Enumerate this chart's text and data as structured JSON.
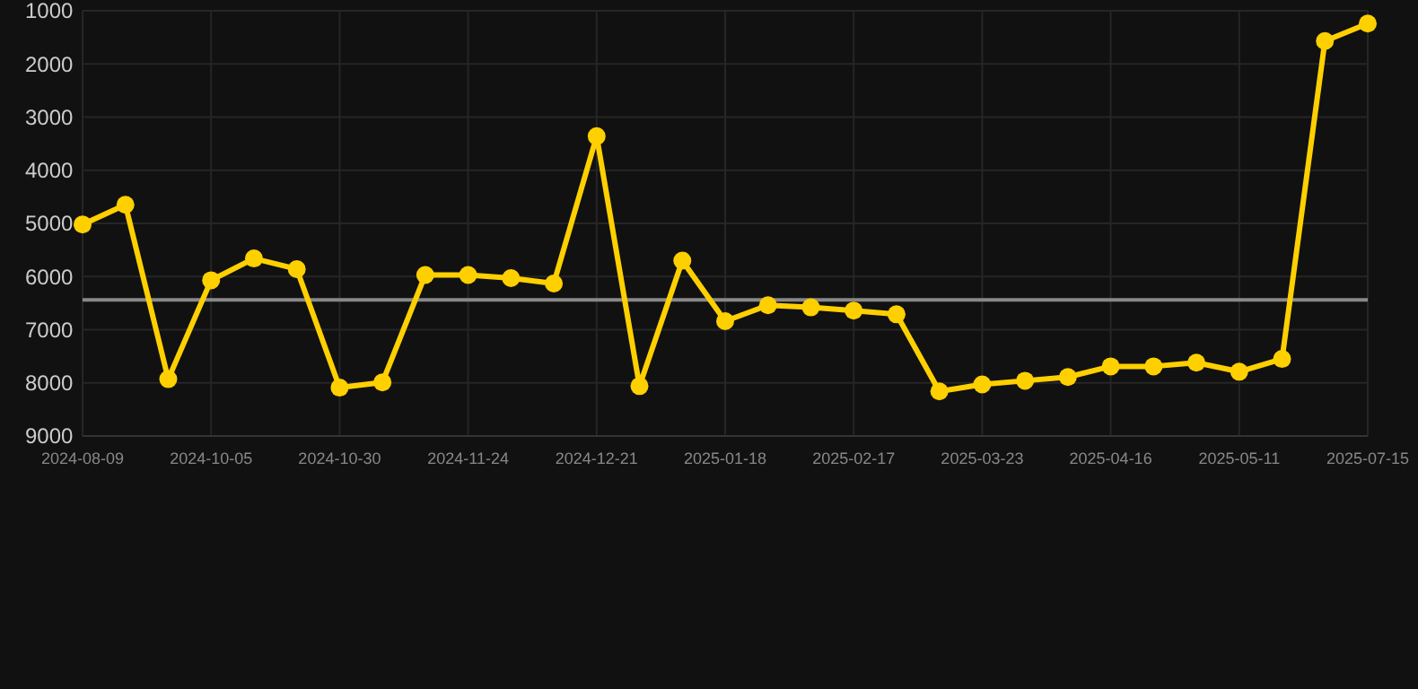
{
  "chart_data": {
    "type": "line",
    "categories": [
      "2024-08-09",
      null,
      null,
      "2024-10-05",
      null,
      null,
      "2024-10-30",
      null,
      null,
      "2024-11-24",
      null,
      null,
      "2024-12-21",
      null,
      null,
      "2025-01-18",
      null,
      null,
      "2025-02-17",
      null,
      null,
      "2025-03-23",
      null,
      null,
      "2025-04-16",
      null,
      null,
      "2025-05-11",
      null,
      null,
      "2025-07-15"
    ],
    "series": [
      {
        "color": "#ffd000",
        "values": [
          5020,
          4650,
          7930,
          6070,
          5660,
          5860,
          8090,
          7990,
          5970,
          5970,
          6030,
          6130,
          3360,
          8060,
          5700,
          6840,
          6540,
          6580,
          6640,
          6710,
          8160,
          8030,
          7960,
          7890,
          7690,
          7690,
          7620,
          7790,
          7550,
          1570,
          1240
        ]
      }
    ],
    "ylim": [
      9000,
      1000
    ],
    "yticks": [
      1000,
      2000,
      3000,
      4000,
      5000,
      6000,
      7000,
      8000,
      9000
    ],
    "ref_lines": [
      {
        "axis": "y",
        "value": 6440,
        "color": "#888888"
      }
    ],
    "grid": true,
    "marker": "circle",
    "line_style": "solid"
  }
}
